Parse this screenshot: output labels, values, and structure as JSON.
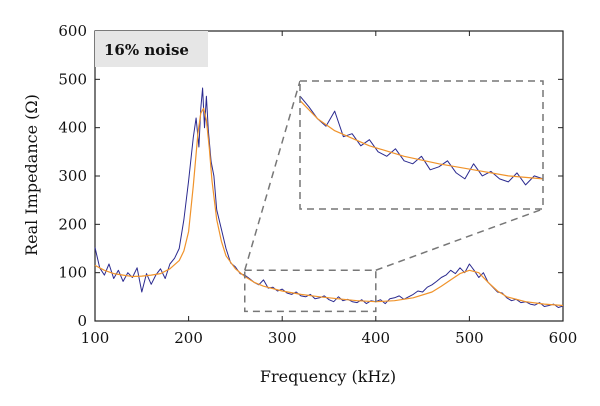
{
  "chart_data": {
    "type": "line",
    "title": "",
    "annotation": "16% noise",
    "xlabel": "Frequency (kHz)",
    "ylabel": "Real Impedance (Ω)",
    "xlim": [
      100,
      600
    ],
    "ylim": [
      0,
      600
    ],
    "xticks": [
      100,
      200,
      300,
      400,
      500,
      600
    ],
    "yticks": [
      0,
      100,
      200,
      300,
      400,
      500,
      600
    ],
    "grid": false,
    "legend": "none",
    "series": [
      {
        "role": "noisy-measurement",
        "color": "#2b2a8f",
        "x": [
          100,
          105,
          110,
          115,
          120,
          125,
          130,
          135,
          140,
          145,
          150,
          155,
          160,
          165,
          170,
          175,
          180,
          185,
          190,
          195,
          200,
          205,
          208,
          211,
          213,
          215,
          217,
          219,
          221,
          224,
          227,
          230,
          235,
          240,
          245,
          250,
          255,
          260,
          265,
          270,
          275,
          280,
          285,
          290,
          295,
          300,
          305,
          310,
          315,
          320,
          325,
          330,
          335,
          340,
          345,
          350,
          355,
          360,
          365,
          370,
          375,
          380,
          385,
          390,
          395,
          400,
          405,
          410,
          415,
          420,
          425,
          430,
          435,
          440,
          445,
          450,
          455,
          460,
          465,
          470,
          475,
          480,
          485,
          490,
          495,
          500,
          505,
          510,
          515,
          520,
          525,
          530,
          535,
          540,
          545,
          550,
          555,
          560,
          565,
          570,
          575,
          580,
          585,
          590,
          595,
          600
        ],
        "values": [
          152,
          110,
          95,
          118,
          88,
          105,
          82,
          100,
          90,
          110,
          60,
          98,
          76,
          95,
          108,
          88,
          118,
          130,
          150,
          210,
          290,
          380,
          420,
          360,
          440,
          482,
          400,
          465,
          395,
          330,
          300,
          230,
          190,
          150,
          120,
          112,
          98,
          95,
          88,
          80,
          75,
          85,
          68,
          70,
          62,
          66,
          58,
          55,
          60,
          52,
          50,
          55,
          46,
          48,
          52,
          44,
          40,
          50,
          42,
          45,
          40,
          38,
          44,
          36,
          42,
          40,
          44,
          36,
          46,
          48,
          52,
          45,
          50,
          55,
          62,
          60,
          70,
          75,
          82,
          90,
          95,
          105,
          98,
          110,
          100,
          118,
          105,
          90,
          100,
          80,
          70,
          60,
          58,
          48,
          42,
          45,
          38,
          40,
          35,
          33,
          38,
          30,
          32,
          35,
          28,
          31
        ]
      },
      {
        "role": "fitted-curve",
        "color": "#f0932b",
        "x": [
          100,
          110,
          120,
          130,
          140,
          150,
          160,
          170,
          180,
          190,
          195,
          200,
          205,
          210,
          213,
          216,
          219,
          222,
          225,
          230,
          235,
          240,
          250,
          260,
          270,
          280,
          300,
          320,
          340,
          360,
          380,
          400,
          420,
          440,
          460,
          470,
          480,
          490,
          500,
          510,
          520,
          530,
          540,
          560,
          580,
          600
        ],
        "values": [
          115,
          105,
          98,
          95,
          92,
          93,
          95,
          98,
          108,
          125,
          145,
          185,
          280,
          390,
          430,
          440,
          415,
          360,
          290,
          210,
          165,
          135,
          108,
          92,
          80,
          72,
          62,
          55,
          50,
          46,
          42,
          40,
          42,
          48,
          60,
          72,
          85,
          98,
          105,
          100,
          80,
          62,
          50,
          40,
          35,
          32
        ]
      }
    ],
    "zoom_region": {
      "x": [
        260,
        400
      ],
      "y": [
        20,
        105
      ]
    }
  }
}
